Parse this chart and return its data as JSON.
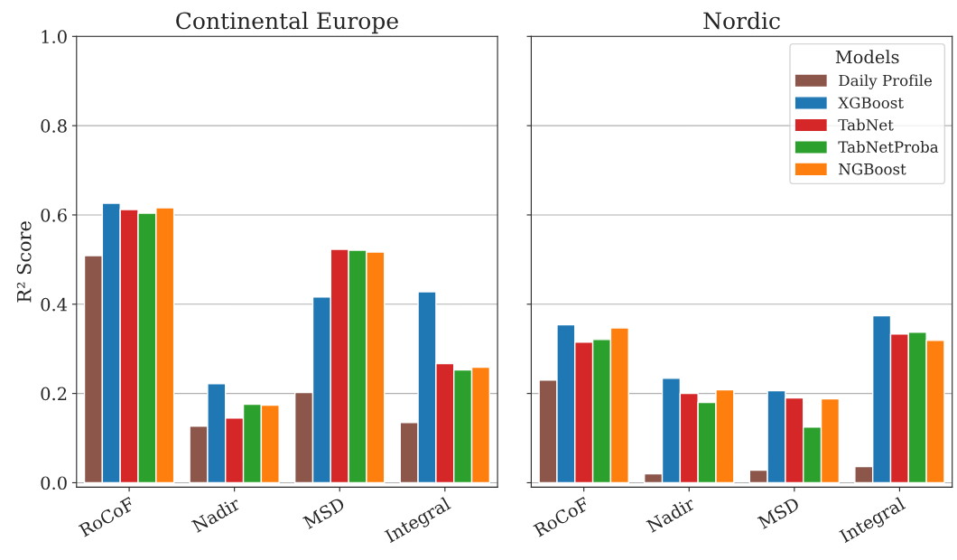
{
  "chart_data": [
    {
      "type": "bar",
      "title": "Continental Europe",
      "ylabel": "R² Score",
      "categories": [
        "RoCoF",
        "Nadir",
        "MSD",
        "Integral"
      ],
      "series": [
        {
          "color": "#8c564b",
          "values": [
            0.509,
            0.127,
            0.202,
            0.135
          ]
        },
        {
          "color": "#1f77b4",
          "values": [
            0.626,
            0.222,
            0.416,
            0.428
          ]
        },
        {
          "color": "#d62728",
          "values": [
            0.612,
            0.145,
            0.523,
            0.267
          ]
        },
        {
          "color": "#2ca02c",
          "values": [
            0.604,
            0.176,
            0.521,
            0.253
          ]
        },
        {
          "color": "#ff7f0e",
          "values": [
            0.616,
            0.174,
            0.517,
            0.259
          ]
        }
      ],
      "ylim": [
        -0.01,
        1.0
      ],
      "yticks": [
        {
          "value": 0,
          "label": "0.0"
        },
        {
          "value": 0.2,
          "label": "0.2"
        },
        {
          "value": 0.4,
          "label": "0.4"
        },
        {
          "value": 0.6,
          "label": "0.6"
        },
        {
          "value": 0.8,
          "label": "0.8"
        },
        {
          "value": 1.0,
          "label": "1.0"
        }
      ],
      "grid": "y"
    },
    {
      "type": "bar",
      "title": "Nordic",
      "legend_title": "Models",
      "categories": [
        "RoCoF",
        "Nadir",
        "MSD",
        "Integral"
      ],
      "series": [
        {
          "name": "Daily Profile",
          "color": "#8c564b",
          "values": [
            0.23,
            0.02,
            0.028,
            0.036
          ]
        },
        {
          "name": "XGBoost",
          "color": "#1f77b4",
          "values": [
            0.354,
            0.234,
            0.206,
            0.374
          ]
        },
        {
          "name": "TabNet",
          "color": "#d62728",
          "values": [
            0.315,
            0.2,
            0.19,
            0.333
          ]
        },
        {
          "name": "TabNetProba",
          "color": "#2ca02c",
          "values": [
            0.321,
            0.18,
            0.125,
            0.337
          ]
        },
        {
          "name": "NGBoost",
          "color": "#ff7f0e",
          "values": [
            0.347,
            0.208,
            0.188,
            0.319
          ]
        }
      ],
      "ylim": [
        -0.01,
        1.0
      ],
      "yticks": [
        {
          "value": 0,
          "label": null
        },
        {
          "value": 0.2,
          "label": null
        },
        {
          "value": 0.4,
          "label": null
        },
        {
          "value": 0.6,
          "label": null
        },
        {
          "value": 0.8,
          "label": null
        },
        {
          "value": 1.0,
          "label": null
        }
      ],
      "grid": "y",
      "legend": "top right",
      "tick_labels": "x"
    }
  ]
}
